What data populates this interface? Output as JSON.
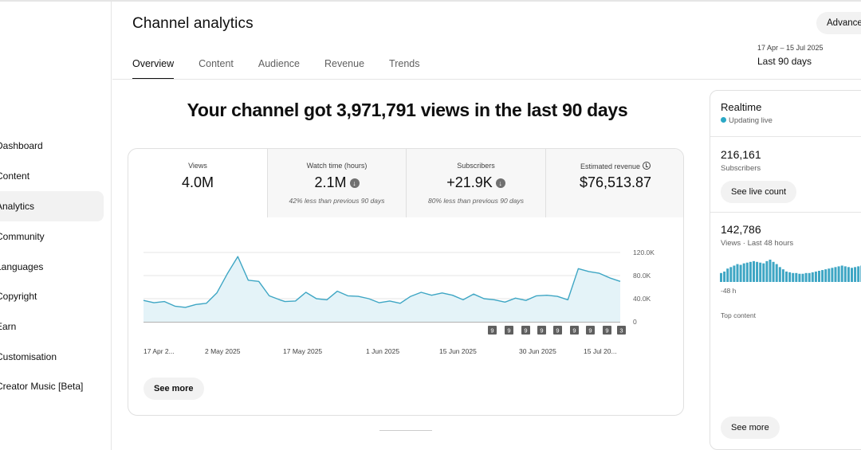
{
  "sidebar": {
    "items": [
      {
        "label": "Dashboard"
      },
      {
        "label": "Content"
      },
      {
        "label": "Analytics",
        "active": true
      },
      {
        "label": "Community"
      },
      {
        "label": "Languages"
      },
      {
        "label": "Copyright"
      },
      {
        "label": "Earn"
      },
      {
        "label": "Customisation"
      },
      {
        "label": "Creator Music [Beta]"
      }
    ]
  },
  "header": {
    "title": "Channel analytics",
    "tabs": [
      "Overview",
      "Content",
      "Audience",
      "Revenue",
      "Trends"
    ],
    "active_tab": "Overview",
    "advanced_label": "Advanced mode",
    "date_range": "17 Apr – 15 Jul 2025",
    "date_label": "Last 90 days"
  },
  "headline": "Your channel got 3,971,791 views in the last 90 days",
  "metrics": [
    {
      "label": "Views",
      "value": "4.0M",
      "note": ""
    },
    {
      "label": "Watch time (hours)",
      "value": "2.1M",
      "note": "42% less than previous 90 days"
    },
    {
      "label": "Subscribers",
      "value": "+21.9K",
      "note": "80% less than previous 90 days"
    },
    {
      "label": "Estimated revenue",
      "value": "$76,513.87",
      "note": ""
    }
  ],
  "chart_data": {
    "type": "area",
    "y_ticks": [
      "120.0K",
      "80.0K",
      "40.0K",
      "0"
    ],
    "ylim": [
      0,
      120000
    ],
    "x_ticks": [
      "17 Apr 2...",
      "2 May 2025",
      "17 May 2025",
      "1 Jun 2025",
      "15 Jun 2025",
      "30 Jun 2025",
      "15 Jul 20..."
    ],
    "x": [
      0,
      2,
      4,
      6,
      8,
      10,
      12,
      14,
      16,
      18,
      20,
      22,
      24,
      26,
      27,
      29,
      31,
      33,
      35,
      37,
      39,
      41,
      43,
      45,
      47,
      49,
      51,
      53,
      55,
      57,
      59,
      61,
      63,
      65,
      67,
      69,
      71,
      73,
      75,
      77,
      79,
      81,
      83,
      85,
      87,
      89,
      91
    ],
    "values": [
      37000,
      33000,
      35000,
      27000,
      25000,
      30000,
      32000,
      50000,
      83000,
      113000,
      72000,
      70000,
      45000,
      38000,
      35000,
      36000,
      51000,
      40000,
      38000,
      53000,
      45000,
      44000,
      40000,
      33000,
      36000,
      32000,
      44000,
      51000,
      46000,
      50000,
      46000,
      38000,
      48000,
      40000,
      38000,
      34000,
      41000,
      37000,
      45000,
      46000,
      44000,
      38000,
      92000,
      87000,
      84000,
      76000,
      70000
    ],
    "series_color": "#3ea6c4",
    "event_markers": [
      "9",
      "9",
      "9",
      "9",
      "9",
      "9",
      "9",
      "9",
      "3"
    ],
    "grid": true
  },
  "see_more_label": "See more",
  "realtime": {
    "title": "Realtime",
    "status": "Updating live",
    "subscribers_value": "216,161",
    "subscribers_label": "Subscribers",
    "live_count_label": "See live count",
    "views_value": "142,786",
    "views_label": "Views · Last 48 hours",
    "axis_left": "-48 h",
    "top_content_label": "Top content",
    "see_more_label": "See more",
    "bar_values": [
      12,
      14,
      18,
      20,
      22,
      24,
      23,
      25,
      26,
      27,
      28,
      27,
      26,
      25,
      28,
      30,
      27,
      24,
      20,
      17,
      14,
      13,
      12,
      12,
      11,
      11,
      12,
      12,
      13,
      14,
      15,
      16,
      17,
      18,
      19,
      20,
      21,
      22,
      21,
      20,
      19,
      20,
      21,
      22
    ],
    "bar_color": "#3ea6c4"
  }
}
